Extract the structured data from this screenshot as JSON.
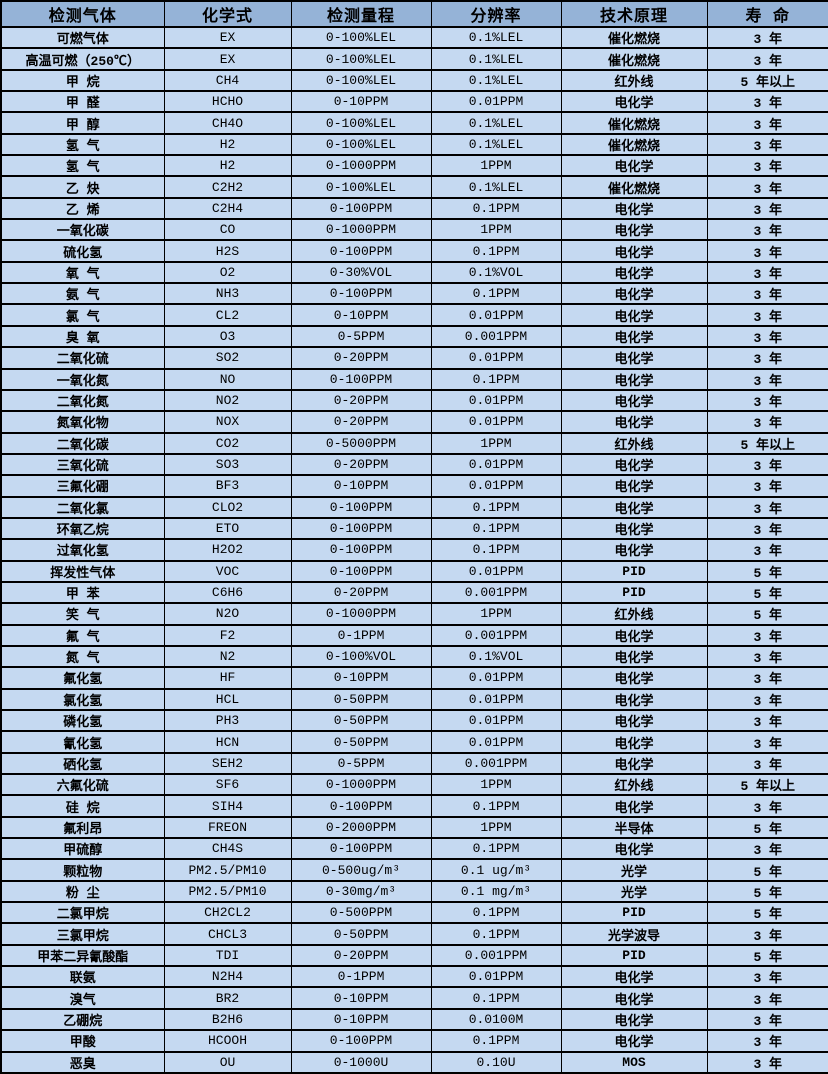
{
  "colors": {
    "header_bg": "#95B3D7",
    "row_bg": "#C5D9F1",
    "border": "#000000",
    "text": "#000000"
  },
  "table": {
    "column_keys": [
      "gas",
      "formula",
      "range",
      "resolution",
      "principle",
      "lifespan"
    ],
    "columns": [
      "检测气体",
      "化学式",
      "检测量程",
      "分辨率",
      "技术原理",
      "寿 命"
    ],
    "rows": [
      [
        "可燃气体",
        "EX",
        "0-100%LEL",
        "0.1%LEL",
        "催化燃烧",
        "3 年"
      ],
      [
        "高温可燃（250℃）",
        "EX",
        "0-100%LEL",
        "0.1%LEL",
        "催化燃烧",
        "3 年"
      ],
      [
        "甲 烷",
        "CH4",
        "0-100%LEL",
        "0.1%LEL",
        "红外线",
        "5 年以上"
      ],
      [
        "甲 醛",
        "HCHO",
        "0-10PPM",
        "0.01PPM",
        "电化学",
        "3 年"
      ],
      [
        "甲 醇",
        "CH4O",
        "0-100%LEL",
        "0.1%LEL",
        "催化燃烧",
        "3 年"
      ],
      [
        "氢 气",
        "H2",
        "0-100%LEL",
        "0.1%LEL",
        "催化燃烧",
        "3 年"
      ],
      [
        "氢 气",
        "H2",
        "0-1000PPM",
        "1PPM",
        "电化学",
        "3 年"
      ],
      [
        "乙 炔",
        "C2H2",
        "0-100%LEL",
        "0.1%LEL",
        "催化燃烧",
        "3 年"
      ],
      [
        "乙 烯",
        "C2H4",
        "0-100PPM",
        "0.1PPM",
        "电化学",
        "3 年"
      ],
      [
        "一氧化碳",
        "CO",
        "0-1000PPM",
        "1PPM",
        "电化学",
        "3 年"
      ],
      [
        "硫化氢",
        "H2S",
        "0-100PPM",
        "0.1PPM",
        "电化学",
        "3 年"
      ],
      [
        "氧 气",
        "O2",
        "0-30%VOL",
        "0.1%VOL",
        "电化学",
        "3 年"
      ],
      [
        "氨 气",
        "NH3",
        "0-100PPM",
        "0.1PPM",
        "电化学",
        "3 年"
      ],
      [
        "氯 气",
        "CL2",
        "0-10PPM",
        "0.01PPM",
        "电化学",
        "3 年"
      ],
      [
        "臭 氧",
        "O3",
        "0-5PPM",
        "0.001PPM",
        "电化学",
        "3 年"
      ],
      [
        "二氧化硫",
        "SO2",
        "0-20PPM",
        "0.01PPM",
        "电化学",
        "3 年"
      ],
      [
        "一氧化氮",
        "NO",
        "0-100PPM",
        "0.1PPM",
        "电化学",
        "3 年"
      ],
      [
        "二氧化氮",
        "NO2",
        "0-20PPM",
        "0.01PPM",
        "电化学",
        "3 年"
      ],
      [
        "氮氧化物",
        "NOX",
        "0-20PPM",
        "0.01PPM",
        "电化学",
        "3 年"
      ],
      [
        "二氧化碳",
        "CO2",
        "0-5000PPM",
        "1PPM",
        "红外线",
        "5 年以上"
      ],
      [
        "三氧化硫",
        "SO3",
        "0-20PPM",
        "0.01PPM",
        "电化学",
        "3 年"
      ],
      [
        "三氟化硼",
        "BF3",
        "0-10PPM",
        "0.01PPM",
        "电化学",
        "3 年"
      ],
      [
        "二氧化氯",
        "CLO2",
        "0-100PPM",
        "0.1PPM",
        "电化学",
        "3 年"
      ],
      [
        "环氧乙烷",
        "ETO",
        "0-100PPM",
        "0.1PPM",
        "电化学",
        "3 年"
      ],
      [
        "过氧化氢",
        "H2O2",
        "0-100PPM",
        "0.1PPM",
        "电化学",
        "3 年"
      ],
      [
        "挥发性气体",
        "VOC",
        "0-100PPM",
        "0.01PPM",
        "PID",
        "5 年"
      ],
      [
        "甲 苯",
        "C6H6",
        "0-20PPM",
        "0.001PPM",
        "PID",
        "5 年"
      ],
      [
        "笑 气",
        "N2O",
        "0-1000PPM",
        "1PPM",
        "红外线",
        "5 年"
      ],
      [
        "氟 气",
        "F2",
        "0-1PPM",
        "0.001PPM",
        "电化学",
        "3 年"
      ],
      [
        "氮 气",
        "N2",
        "0-100%VOL",
        "0.1%VOL",
        "电化学",
        "3 年"
      ],
      [
        "氟化氢",
        "HF",
        "0-10PPM",
        "0.01PPM",
        "电化学",
        "3 年"
      ],
      [
        "氯化氢",
        "HCL",
        "0-50PPM",
        "0.01PPM",
        "电化学",
        "3 年"
      ],
      [
        "磷化氢",
        "PH3",
        "0-50PPM",
        "0.01PPM",
        "电化学",
        "3 年"
      ],
      [
        "氰化氢",
        "HCN",
        "0-50PPM",
        "0.01PPM",
        "电化学",
        "3 年"
      ],
      [
        "硒化氢",
        "SEH2",
        "0-5PPM",
        "0.001PPM",
        "电化学",
        "3 年"
      ],
      [
        "六氟化硫",
        "SF6",
        "0-1000PPM",
        "1PPM",
        "红外线",
        "5 年以上"
      ],
      [
        "硅 烷",
        "SIH4",
        "0-100PPM",
        "0.1PPM",
        "电化学",
        "3 年"
      ],
      [
        "氟利昂",
        "FREON",
        "0-2000PPM",
        "1PPM",
        "半导体",
        "5 年"
      ],
      [
        "甲硫醇",
        "CH4S",
        "0-100PPM",
        "0.1PPM",
        "电化学",
        "3 年"
      ],
      [
        "颗粒物",
        "PM2.5/PM10",
        "0-500ug/m³",
        "0.1 ug/m³",
        "光学",
        "5 年"
      ],
      [
        "粉 尘",
        "PM2.5/PM10",
        "0-30mg/m³",
        "0.1 mg/m³",
        "光学",
        "5 年"
      ],
      [
        "二氯甲烷",
        "CH2CL2",
        "0-500PPM",
        "0.1PPM",
        "PID",
        "5 年"
      ],
      [
        "三氯甲烷",
        "CHCL3",
        "0-50PPM",
        "0.1PPM",
        "光学波导",
        "3 年"
      ],
      [
        "甲苯二异氰酸酯",
        "TDI",
        "0-20PPM",
        "0.001PPM",
        "PID",
        "5 年"
      ],
      [
        "联氨",
        "N2H4",
        "0-1PPM",
        "0.01PPM",
        "电化学",
        "3 年"
      ],
      [
        "溴气",
        "BR2",
        "0-10PPM",
        "0.1PPM",
        "电化学",
        "3 年"
      ],
      [
        "乙硼烷",
        "B2H6",
        "0-10PPM",
        "0.0100M",
        "电化学",
        "3 年"
      ],
      [
        "甲酸",
        "HCOOH",
        "0-100PPM",
        "0.1PPM",
        "电化学",
        "3 年"
      ],
      [
        "恶臭",
        "OU",
        "0-1000U",
        "0.10U",
        "MOS",
        "3 年"
      ]
    ]
  }
}
